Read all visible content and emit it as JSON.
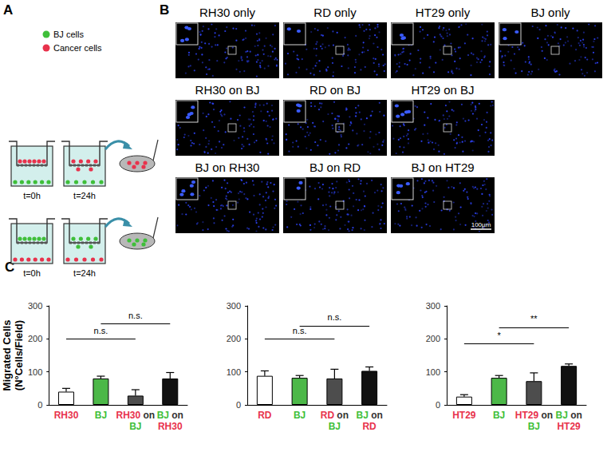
{
  "figure": {
    "panels": [
      "A",
      "B",
      "C"
    ],
    "schematic": {
      "legend": [
        {
          "label": "BJ cells",
          "color": "#3fbf3a"
        },
        {
          "label": "Cancer cells",
          "color": "#e8324c"
        }
      ],
      "times": [
        "t=0h",
        "t=24h"
      ]
    },
    "images": {
      "rows": [
        [
          "RH30 only",
          "RD only",
          "HT29 only",
          "BJ only"
        ],
        [
          "RH30 on BJ",
          "RD on BJ",
          "HT29 on BJ"
        ],
        [
          "BJ on RH30",
          "BJ on RD",
          "BJ on HT29"
        ]
      ],
      "scale_bar": "100µm"
    }
  },
  "chart_data": [
    {
      "type": "bar",
      "ylabel": "Migrated Cells (N°Cells/Field)",
      "categories": [
        "RH30",
        "BJ",
        "RH30 on BJ",
        "BJ on RH30"
      ],
      "values": [
        40,
        80,
        28,
        80
      ],
      "errors": [
        10,
        7,
        18,
        18
      ],
      "colors": [
        "#ffffff",
        "#4cb848",
        "#4d4d4d",
        "#111111"
      ],
      "ylim": [
        0,
        300
      ],
      "yticks": [
        0,
        100,
        200,
        300
      ],
      "grid": false,
      "annotations": [
        {
          "from": "RH30",
          "to": "RH30 on BJ",
          "y": 200,
          "label": "n.s."
        },
        {
          "from": "BJ",
          "to": "BJ on RH30",
          "y": 245,
          "label": "n.s."
        }
      ]
    },
    {
      "type": "bar",
      "categories": [
        "RD",
        "BJ",
        "RD on BJ",
        "BJ on RD"
      ],
      "values": [
        88,
        82,
        80,
        103
      ],
      "errors": [
        15,
        7,
        28,
        12
      ],
      "colors": [
        "#ffffff",
        "#4cb848",
        "#4d4d4d",
        "#111111"
      ],
      "ylim": [
        0,
        300
      ],
      "yticks": [
        0,
        100,
        200,
        300
      ],
      "grid": false,
      "annotations": [
        {
          "from": "RD",
          "to": "RD on BJ",
          "y": 200,
          "label": "n.s."
        },
        {
          "from": "BJ",
          "to": "BJ on RD",
          "y": 240,
          "label": "n.s."
        }
      ]
    },
    {
      "type": "bar",
      "categories": [
        "HT29",
        "BJ",
        "HT29 on BJ",
        "BJ on HT29"
      ],
      "values": [
        25,
        82,
        72,
        118
      ],
      "errors": [
        6,
        7,
        25,
        6
      ],
      "colors": [
        "#ffffff",
        "#4cb848",
        "#4d4d4d",
        "#111111"
      ],
      "ylim": [
        0,
        300
      ],
      "yticks": [
        0,
        100,
        200,
        300
      ],
      "grid": false,
      "annotations": [
        {
          "from": "HT29",
          "to": "HT29 on BJ",
          "y": 185,
          "label": "*"
        },
        {
          "from": "BJ",
          "to": "BJ on HT29",
          "y": 235,
          "label": "**"
        }
      ]
    }
  ]
}
